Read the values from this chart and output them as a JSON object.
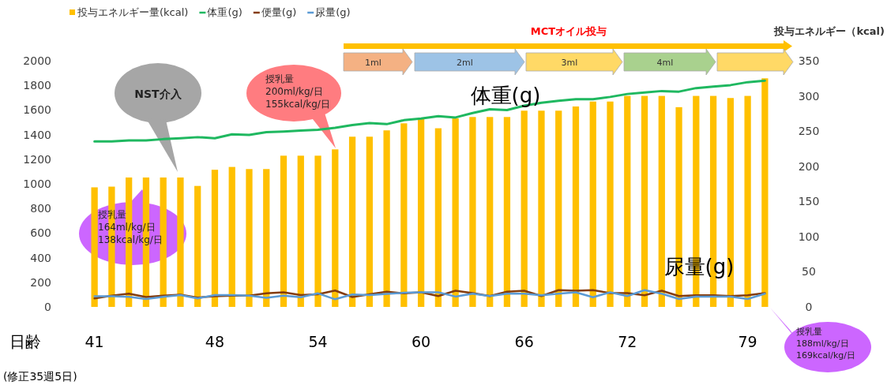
{
  "chart_data": {
    "type": "bar",
    "categories": [
      "41",
      null,
      null,
      null,
      null,
      null,
      null,
      "48",
      null,
      null,
      null,
      null,
      null,
      "54",
      null,
      null,
      null,
      null,
      null,
      "60",
      null,
      null,
      null,
      null,
      null,
      "66",
      null,
      null,
      null,
      null,
      null,
      "72",
      null,
      null,
      null,
      null,
      null,
      null,
      "79",
      null
    ],
    "series": [
      {
        "name": "投与エネルギー量(kcal)",
        "axis": "y2",
        "color": "#ffc000",
        "values": [
          170,
          171,
          184,
          184,
          184,
          184,
          172,
          195,
          199,
          196,
          196,
          215,
          215,
          215,
          224,
          242,
          242,
          251,
          261,
          267,
          254,
          268,
          270,
          270,
          270,
          279,
          279,
          279,
          285,
          292,
          292,
          300,
          300,
          300,
          284,
          300,
          300,
          297,
          300,
          325
        ]
      },
      {
        "name": "体重(g)",
        "type": "line",
        "color": "#1fb860",
        "values": [
          1345,
          1345,
          1352,
          1352,
          1363,
          1370,
          1379,
          1370,
          1402,
          1397,
          1420,
          1425,
          1432,
          1439,
          1455,
          1478,
          1494,
          1485,
          1517,
          1530,
          1550,
          1539,
          1575,
          1606,
          1599,
          1635,
          1659,
          1675,
          1687,
          1687,
          1706,
          1730,
          1742,
          1754,
          1749,
          1778,
          1790,
          1802,
          1826,
          1838
        ]
      },
      {
        "name": "便量(g)",
        "type": "line",
        "color": "#843c0c",
        "values": [
          69,
          92,
          108,
          80,
          92,
          99,
          76,
          87,
          92,
          92,
          110,
          119,
          96,
          103,
          133,
          80,
          103,
          124,
          110,
          119,
          88,
          131,
          112,
          88,
          124,
          131,
          88,
          136,
          131,
          136,
          112,
          112,
          95,
          131,
          88,
          95,
          95,
          88,
          95,
          112
        ]
      },
      {
        "name": "尿量(g)",
        "type": "line",
        "color": "#5b9bd5",
        "values": [
          87,
          87,
          82,
          64,
          82,
          96,
          69,
          96,
          96,
          92,
          73,
          92,
          78,
          110,
          62,
          101,
          96,
          105,
          115,
          119,
          119,
          84,
          107,
          88,
          107,
          107,
          95,
          107,
          119,
          79,
          119,
          88,
          136,
          107,
          64,
          84,
          84,
          84,
          64,
          107
        ]
      }
    ],
    "ylim": [
      0,
      2000
    ],
    "yticks": [
      0,
      200,
      400,
      600,
      800,
      1000,
      1200,
      1400,
      1600,
      1800,
      2000
    ],
    "y2lim": [
      0,
      350
    ],
    "y2ticks": [
      0,
      50,
      100,
      150,
      200,
      250,
      300,
      350
    ],
    "xlabel": "日齢",
    "y2label": "投与エネルギー（kcal)",
    "legend": "top left",
    "grid": false,
    "annotations": [
      "NST介入",
      "授乳量\n200ml/kg/日\n155kcal/kg/日",
      "授乳量\n164ml/kg/日\n138kcal/kg/日",
      "授乳量\n188ml/kg/日\n169kcal/kg/日",
      "体重(g)",
      "尿量(g)",
      "MCTオイル投与",
      "1ml",
      "2ml",
      "3ml",
      "4ml",
      "(修正35週5日)"
    ]
  }
}
